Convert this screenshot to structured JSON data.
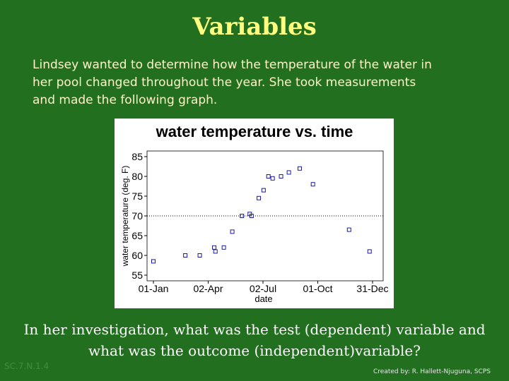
{
  "slide": {
    "title": "Variables",
    "intro": [
      "Lindsey wanted to determine how the temperature of the water in",
      "her pool changed throughout the year.  She took measurements",
      "and made the following graph."
    ],
    "question": [
      "In her investigation, what was the test (dependent) variable and",
      "what was the outcome (independent)variable?"
    ],
    "standard": "SC.7.N.1.4",
    "credit": "Created by: R. Hallett-Njuguna, SCPS"
  },
  "chart_data": {
    "type": "scatter",
    "title": "water temperature vs. time",
    "x_label": "date",
    "y_label": "water temperature (deg. F)",
    "x": [
      "01-Jan",
      "23-Feb",
      "19-Mar",
      "12-Apr",
      "14-Apr",
      "28-Apr",
      "12-May",
      "28-May",
      "10-Jun",
      "13-Jun",
      "25-Jun",
      "03-Jul",
      "11-Jul",
      "18-Jul",
      "01-Aug",
      "14-Aug",
      "01-Sep",
      "23-Sep",
      "22-Nov",
      "26-Dec"
    ],
    "series": [
      {
        "color": "#1a1aa0",
        "values": [
          58.5,
          60,
          60,
          62,
          61,
          62,
          66,
          70,
          70.5,
          70,
          74.5,
          76.5,
          80,
          79.5,
          80,
          81,
          82,
          78,
          66.5,
          61
        ]
      }
    ],
    "xlim": [
      "01-Jan",
      "31-Dec"
    ],
    "xticks": [
      "01-Jan",
      "02-Apr",
      "02-Jul",
      "01-Oct",
      "31-Dec"
    ],
    "ylim": [
      55,
      85
    ],
    "yticks": [
      55,
      60,
      65,
      70,
      75,
      80,
      85
    ],
    "reference_line": 70
  }
}
